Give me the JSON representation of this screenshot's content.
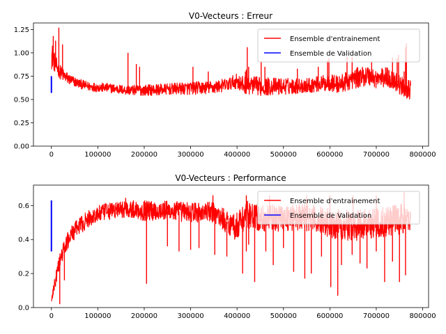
{
  "chart_data": [
    {
      "type": "line",
      "title": "V0-Vecteurs : Erreur",
      "xlabel": "",
      "ylabel": "",
      "xlim": [
        -38700,
        812700
      ],
      "ylim": [
        0.0,
        1.32
      ],
      "xticks": [
        0,
        100000,
        200000,
        300000,
        400000,
        500000,
        600000,
        700000,
        800000
      ],
      "xtick_labels": [
        "0",
        "100000",
        "200000",
        "300000",
        "400000",
        "500000",
        "600000",
        "700000",
        "800000"
      ],
      "yticks": [
        0.0,
        0.25,
        0.5,
        0.75,
        1.0,
        1.25
      ],
      "ytick_labels": [
        "0.00",
        "0.25",
        "0.50",
        "0.75",
        "1.00",
        "1.25"
      ],
      "grid": false,
      "legend": "top-right",
      "series": [
        {
          "name": "Ensemble d'entrainement",
          "color": "#ff0000",
          "x": [
            0,
            3000,
            8000,
            15000,
            25000,
            40000,
            60000,
            80000,
            100000,
            130000,
            160000,
            200000,
            250000,
            300000,
            350000,
            380000,
            400000,
            410000,
            420000,
            450000,
            500000,
            550000,
            600000,
            620000,
            650000,
            680000,
            700000,
            720000,
            740000,
            760000,
            774000
          ],
          "y": [
            1.0,
            0.95,
            0.88,
            0.82,
            0.76,
            0.71,
            0.67,
            0.64,
            0.63,
            0.62,
            0.6,
            0.6,
            0.61,
            0.62,
            0.63,
            0.66,
            0.7,
            0.65,
            0.66,
            0.64,
            0.64,
            0.65,
            0.68,
            0.66,
            0.72,
            0.76,
            0.72,
            0.74,
            0.7,
            0.62,
            0.6
          ],
          "band": [
            0.18,
            0.12,
            0.1,
            0.08,
            0.07,
            0.06,
            0.05,
            0.05,
            0.05,
            0.05,
            0.05,
            0.06,
            0.06,
            0.07,
            0.07,
            0.07,
            0.08,
            0.1,
            0.1,
            0.1,
            0.09,
            0.08,
            0.09,
            0.1,
            0.11,
            0.11,
            0.1,
            0.11,
            0.11,
            0.1,
            0.1
          ],
          "spikes": [
            [
              4000,
              1.18
            ],
            [
              9000,
              1.13
            ],
            [
              16000,
              1.27
            ],
            [
              24000,
              1.09
            ],
            [
              165000,
              1.0
            ],
            [
              183000,
              0.88
            ],
            [
              190000,
              0.85
            ],
            [
              305000,
              0.85
            ],
            [
              338000,
              0.8
            ],
            [
              412000,
              0.7
            ],
            [
              418000,
              0.8
            ],
            [
              420000,
              0.82
            ],
            [
              422000,
              1.06
            ],
            [
              425000,
              0.85
            ],
            [
              452000,
              0.9
            ],
            [
              460000,
              0.85
            ],
            [
              530000,
              0.83
            ],
            [
              575000,
              0.85
            ],
            [
              595000,
              0.92
            ],
            [
              598000,
              0.94
            ],
            [
              637000,
              0.96
            ],
            [
              648000,
              0.96
            ],
            [
              690000,
              0.9
            ],
            [
              735000,
              0.95
            ],
            [
              745000,
              0.94
            ],
            [
              748000,
              0.98
            ],
            [
              760000,
              0.8
            ],
            [
              763000,
              1.06
            ],
            [
              765000,
              1.1
            ]
          ]
        },
        {
          "name": "Ensemble de Validation",
          "color": "#0000ff",
          "x": [
            0,
            0
          ],
          "y": [
            0.57,
            0.75
          ]
        }
      ]
    },
    {
      "type": "line",
      "title": "V0-Vecteurs : Performance",
      "xlabel": "",
      "ylabel": "",
      "xlim": [
        -38700,
        812700
      ],
      "ylim": [
        0.0,
        0.72
      ],
      "xticks": [
        0,
        100000,
        200000,
        300000,
        400000,
        500000,
        600000,
        700000,
        800000
      ],
      "xtick_labels": [
        "0",
        "100000",
        "200000",
        "300000",
        "400000",
        "500000",
        "600000",
        "700000",
        "800000"
      ],
      "yticks": [
        0.0,
        0.2,
        0.4,
        0.6
      ],
      "ytick_labels": [
        "0.0",
        "0.2",
        "0.4",
        "0.6"
      ],
      "grid": false,
      "legend": "top-right",
      "series": [
        {
          "name": "Ensemble d'entrainement",
          "color": "#ff0000",
          "x": [
            0,
            3000,
            8000,
            15000,
            25000,
            40000,
            60000,
            80000,
            100000,
            130000,
            160000,
            200000,
            250000,
            300000,
            350000,
            380000,
            400000,
            420000,
            450000,
            500000,
            550000,
            600000,
            650000,
            700000,
            750000,
            774000
          ],
          "y": [
            0.03,
            0.08,
            0.15,
            0.24,
            0.33,
            0.42,
            0.48,
            0.52,
            0.55,
            0.57,
            0.58,
            0.57,
            0.57,
            0.56,
            0.56,
            0.5,
            0.48,
            0.55,
            0.52,
            0.53,
            0.53,
            0.5,
            0.48,
            0.5,
            0.52,
            0.52
          ],
          "band": [
            0.02,
            0.03,
            0.04,
            0.05,
            0.05,
            0.05,
            0.05,
            0.05,
            0.05,
            0.05,
            0.05,
            0.06,
            0.06,
            0.06,
            0.06,
            0.07,
            0.08,
            0.08,
            0.08,
            0.08,
            0.08,
            0.09,
            0.09,
            0.09,
            0.09,
            0.09
          ],
          "dips": [
            [
              18000,
              0.02
            ],
            [
              28000,
              0.16
            ],
            [
              205000,
              0.14
            ],
            [
              250000,
              0.36
            ],
            [
              275000,
              0.33
            ],
            [
              300000,
              0.34
            ],
            [
              318000,
              0.35
            ],
            [
              352000,
              0.31
            ],
            [
              378000,
              0.3
            ],
            [
              395000,
              0.4
            ],
            [
              412000,
              0.2
            ],
            [
              420000,
              0.33
            ],
            [
              425000,
              0.37
            ],
            [
              438000,
              0.15
            ],
            [
              462000,
              0.33
            ],
            [
              478000,
              0.25
            ],
            [
              500000,
              0.35
            ],
            [
              522000,
              0.21
            ],
            [
              546000,
              0.17
            ],
            [
              560000,
              0.2
            ],
            [
              582000,
              0.3
            ],
            [
              602000,
              0.12
            ],
            [
              617000,
              0.07
            ],
            [
              625000,
              0.25
            ],
            [
              648000,
              0.31
            ],
            [
              665000,
              0.26
            ],
            [
              680000,
              0.23
            ],
            [
              700000,
              0.33
            ],
            [
              718000,
              0.15
            ],
            [
              735000,
              0.27
            ],
            [
              750000,
              0.15
            ],
            [
              763000,
              0.19
            ]
          ],
          "peaks": [
            [
              160000,
              0.645
            ],
            [
              348000,
              0.66
            ],
            [
              420000,
              0.66
            ],
            [
              470000,
              0.66
            ],
            [
              550000,
              0.66
            ],
            [
              600000,
              0.66
            ],
            [
              650000,
              0.66
            ],
            [
              700000,
              0.66
            ],
            [
              760000,
              0.68
            ]
          ]
        },
        {
          "name": "Ensemble de Validation",
          "color": "#0000ff",
          "x": [
            0,
            0
          ],
          "y": [
            0.33,
            0.63
          ]
        }
      ]
    }
  ]
}
